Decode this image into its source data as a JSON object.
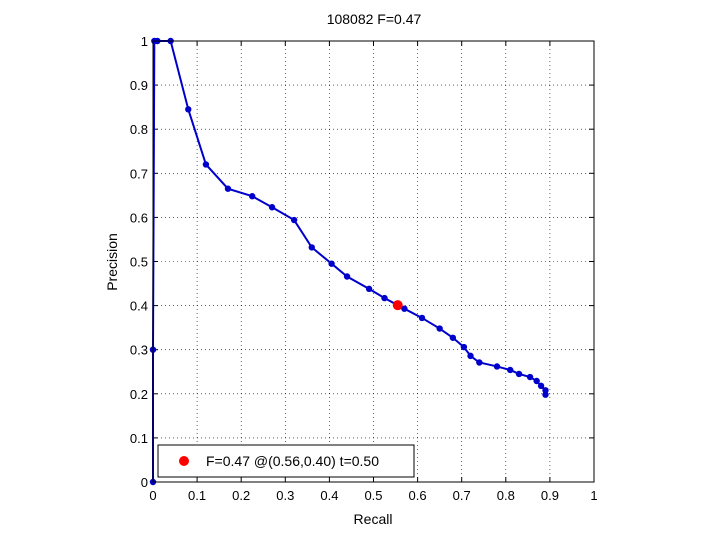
{
  "chart_data": {
    "type": "line",
    "title": "108082 F=0.47",
    "xlabel": "Recall",
    "ylabel": "Precision",
    "xlim": [
      0,
      1
    ],
    "ylim": [
      0,
      1
    ],
    "xticks": [
      "0",
      "0.1",
      "0.2",
      "0.3",
      "0.4",
      "0.5",
      "0.6",
      "0.7",
      "0.8",
      "0.9",
      "1"
    ],
    "yticks": [
      "0",
      "0.1",
      "0.2",
      "0.3",
      "0.4",
      "0.5",
      "0.6",
      "0.7",
      "0.8",
      "0.9",
      "1"
    ],
    "grid": true,
    "series": [
      {
        "color": "#0000cc",
        "marker": "dot",
        "x": [
          0,
          0,
          0.003,
          0.01,
          0.04,
          0.08,
          0.12,
          0.17,
          0.225,
          0.27,
          0.32,
          0.36,
          0.405,
          0.44,
          0.49,
          0.525,
          0.57,
          0.61,
          0.65,
          0.68,
          0.705,
          0.72,
          0.74,
          0.78,
          0.81,
          0.83,
          0.855,
          0.87,
          0.88,
          0.89,
          0.89
        ],
        "y": [
          0,
          0.3,
          1.0,
          1.0,
          1.0,
          0.845,
          0.72,
          0.665,
          0.648,
          0.623,
          0.594,
          0.532,
          0.495,
          0.466,
          0.438,
          0.417,
          0.393,
          0.372,
          0.348,
          0.327,
          0.306,
          0.286,
          0.271,
          0.262,
          0.254,
          0.245,
          0.238,
          0.229,
          0.218,
          0.208,
          0.198
        ]
      }
    ],
    "highlight": {
      "x": 0.555,
      "y": 0.401,
      "color": "#ff0000"
    },
    "legend": {
      "position": "bottom-left",
      "label": "F=0.47 @(0.56,0.40) t=0.50"
    }
  }
}
